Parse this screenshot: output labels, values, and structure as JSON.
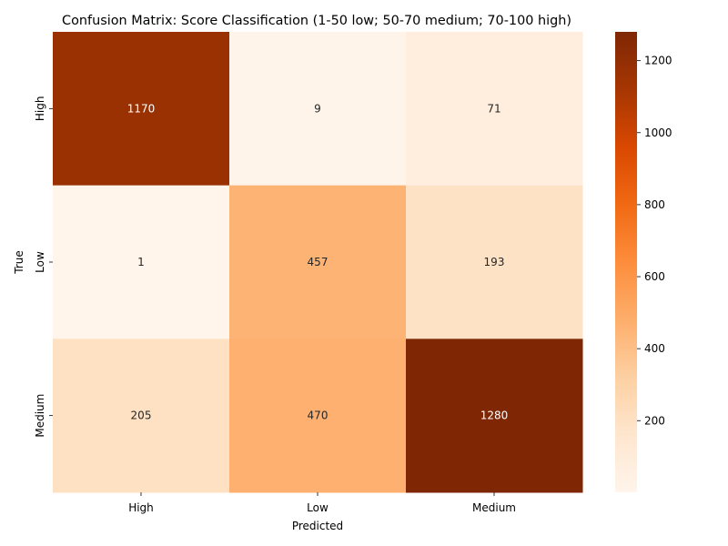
{
  "chart_data": {
    "type": "heatmap",
    "title": "Confusion Matrix: Score Classification (1-50 low; 50-70 medium; 70-100 high)",
    "xlabel": "Predicted",
    "ylabel": "True",
    "x_categories": [
      "High",
      "Low",
      "Medium"
    ],
    "y_categories": [
      "High",
      "Low",
      "Medium"
    ],
    "values": [
      [
        1170,
        9,
        71
      ],
      [
        1,
        457,
        193
      ],
      [
        205,
        470,
        1280
      ]
    ],
    "colorbar": {
      "colormap": "Oranges",
      "range": [
        1,
        1280
      ],
      "ticks": [
        200,
        400,
        600,
        800,
        1000,
        1200
      ]
    }
  }
}
